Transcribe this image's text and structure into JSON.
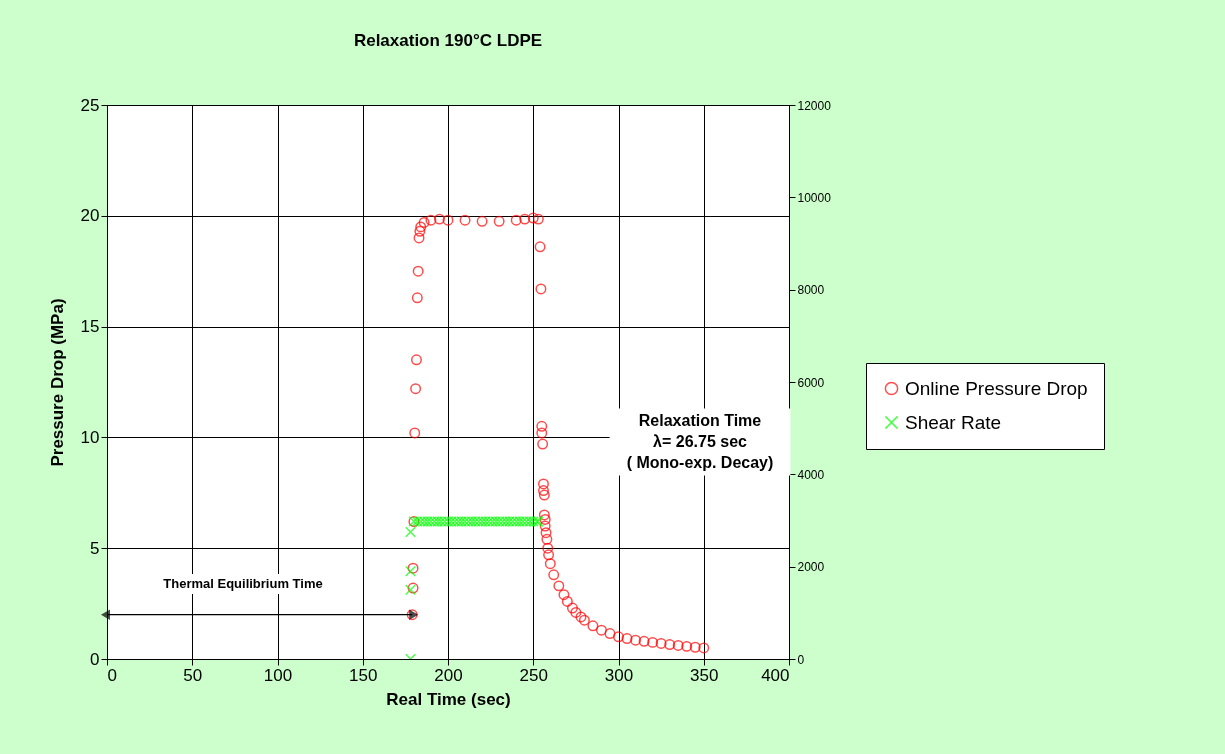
{
  "chart_data": {
    "type": "scatter",
    "title": "Relaxation 190°C LDPE",
    "xlabel": "Real Time (sec)",
    "ylabel": "Pressure Drop (MPa)",
    "xlim": [
      0,
      400
    ],
    "xticks": [
      0,
      50,
      100,
      150,
      200,
      250,
      300,
      350,
      400
    ],
    "ylim": [
      0,
      25
    ],
    "yticks": [
      0,
      5,
      10,
      15,
      20,
      25
    ],
    "y2lim": [
      0,
      12000
    ],
    "y2ticks": [
      0,
      2000,
      4000,
      6000,
      8000,
      10000,
      12000
    ],
    "grid": true,
    "legend": "right",
    "series": [
      {
        "name": "Online Pressure Drop",
        "color": "#ff0000",
        "marker": "circle",
        "x": [
          179,
          179.5,
          179.5,
          180,
          180.5,
          181,
          181.5,
          182,
          182.5,
          183,
          183.5,
          184,
          186,
          190,
          195,
          200,
          210,
          220,
          230,
          240,
          245,
          250,
          253,
          254,
          254.5,
          255,
          255,
          255.5,
          256,
          256,
          256.5,
          256.5,
          257,
          257,
          257.5,
          258,
          258.5,
          259,
          260,
          262,
          265,
          268,
          270,
          273,
          275,
          278,
          280,
          285,
          290,
          295,
          300,
          305,
          310,
          315,
          320,
          325,
          330,
          335,
          340,
          345,
          350
        ],
        "values": [
          2.0,
          3.2,
          4.1,
          6.2,
          10.2,
          12.2,
          13.5,
          16.3,
          17.5,
          19.0,
          19.3,
          19.5,
          19.7,
          19.8,
          19.85,
          19.8,
          19.8,
          19.75,
          19.75,
          19.8,
          19.85,
          19.9,
          19.85,
          18.6,
          16.7,
          10.5,
          10.2,
          9.7,
          7.9,
          7.6,
          7.4,
          6.5,
          6.3,
          6.0,
          5.7,
          5.4,
          5.0,
          4.7,
          4.3,
          3.8,
          3.3,
          2.9,
          2.6,
          2.3,
          2.1,
          1.9,
          1.75,
          1.5,
          1.3,
          1.15,
          1.0,
          0.92,
          0.85,
          0.8,
          0.75,
          0.7,
          0.65,
          0.61,
          0.57,
          0.53,
          0.5
        ]
      },
      {
        "name": "Shear Rate",
        "color": "#00ff00",
        "marker": "cross",
        "axis": "y2",
        "x": [
          178,
          178,
          178,
          178,
          180,
          182,
          184,
          186,
          188,
          190,
          192,
          194,
          196,
          198,
          200,
          202,
          204,
          206,
          208,
          210,
          212,
          214,
          216,
          218,
          220,
          222,
          224,
          226,
          228,
          230,
          232,
          234,
          236,
          238,
          240,
          242,
          244,
          246,
          248,
          250,
          252,
          253
        ],
        "values": [
          0,
          1500,
          1900,
          2750,
          2980,
          2980,
          2980,
          2980,
          2980,
          2980,
          2980,
          2980,
          2980,
          2980,
          2980,
          2980,
          2980,
          2980,
          2980,
          2980,
          2980,
          2980,
          2980,
          2980,
          2980,
          2980,
          2980,
          2980,
          2980,
          2980,
          2980,
          2980,
          2980,
          2980,
          2980,
          2980,
          2980,
          2980,
          2980,
          2980,
          2980,
          2980
        ]
      }
    ],
    "annotations": [
      "Thermal Equilibrium Time",
      "Relaxation Time\nλ= 26.75 sec\n( Mono-exp. Decay)"
    ]
  }
}
